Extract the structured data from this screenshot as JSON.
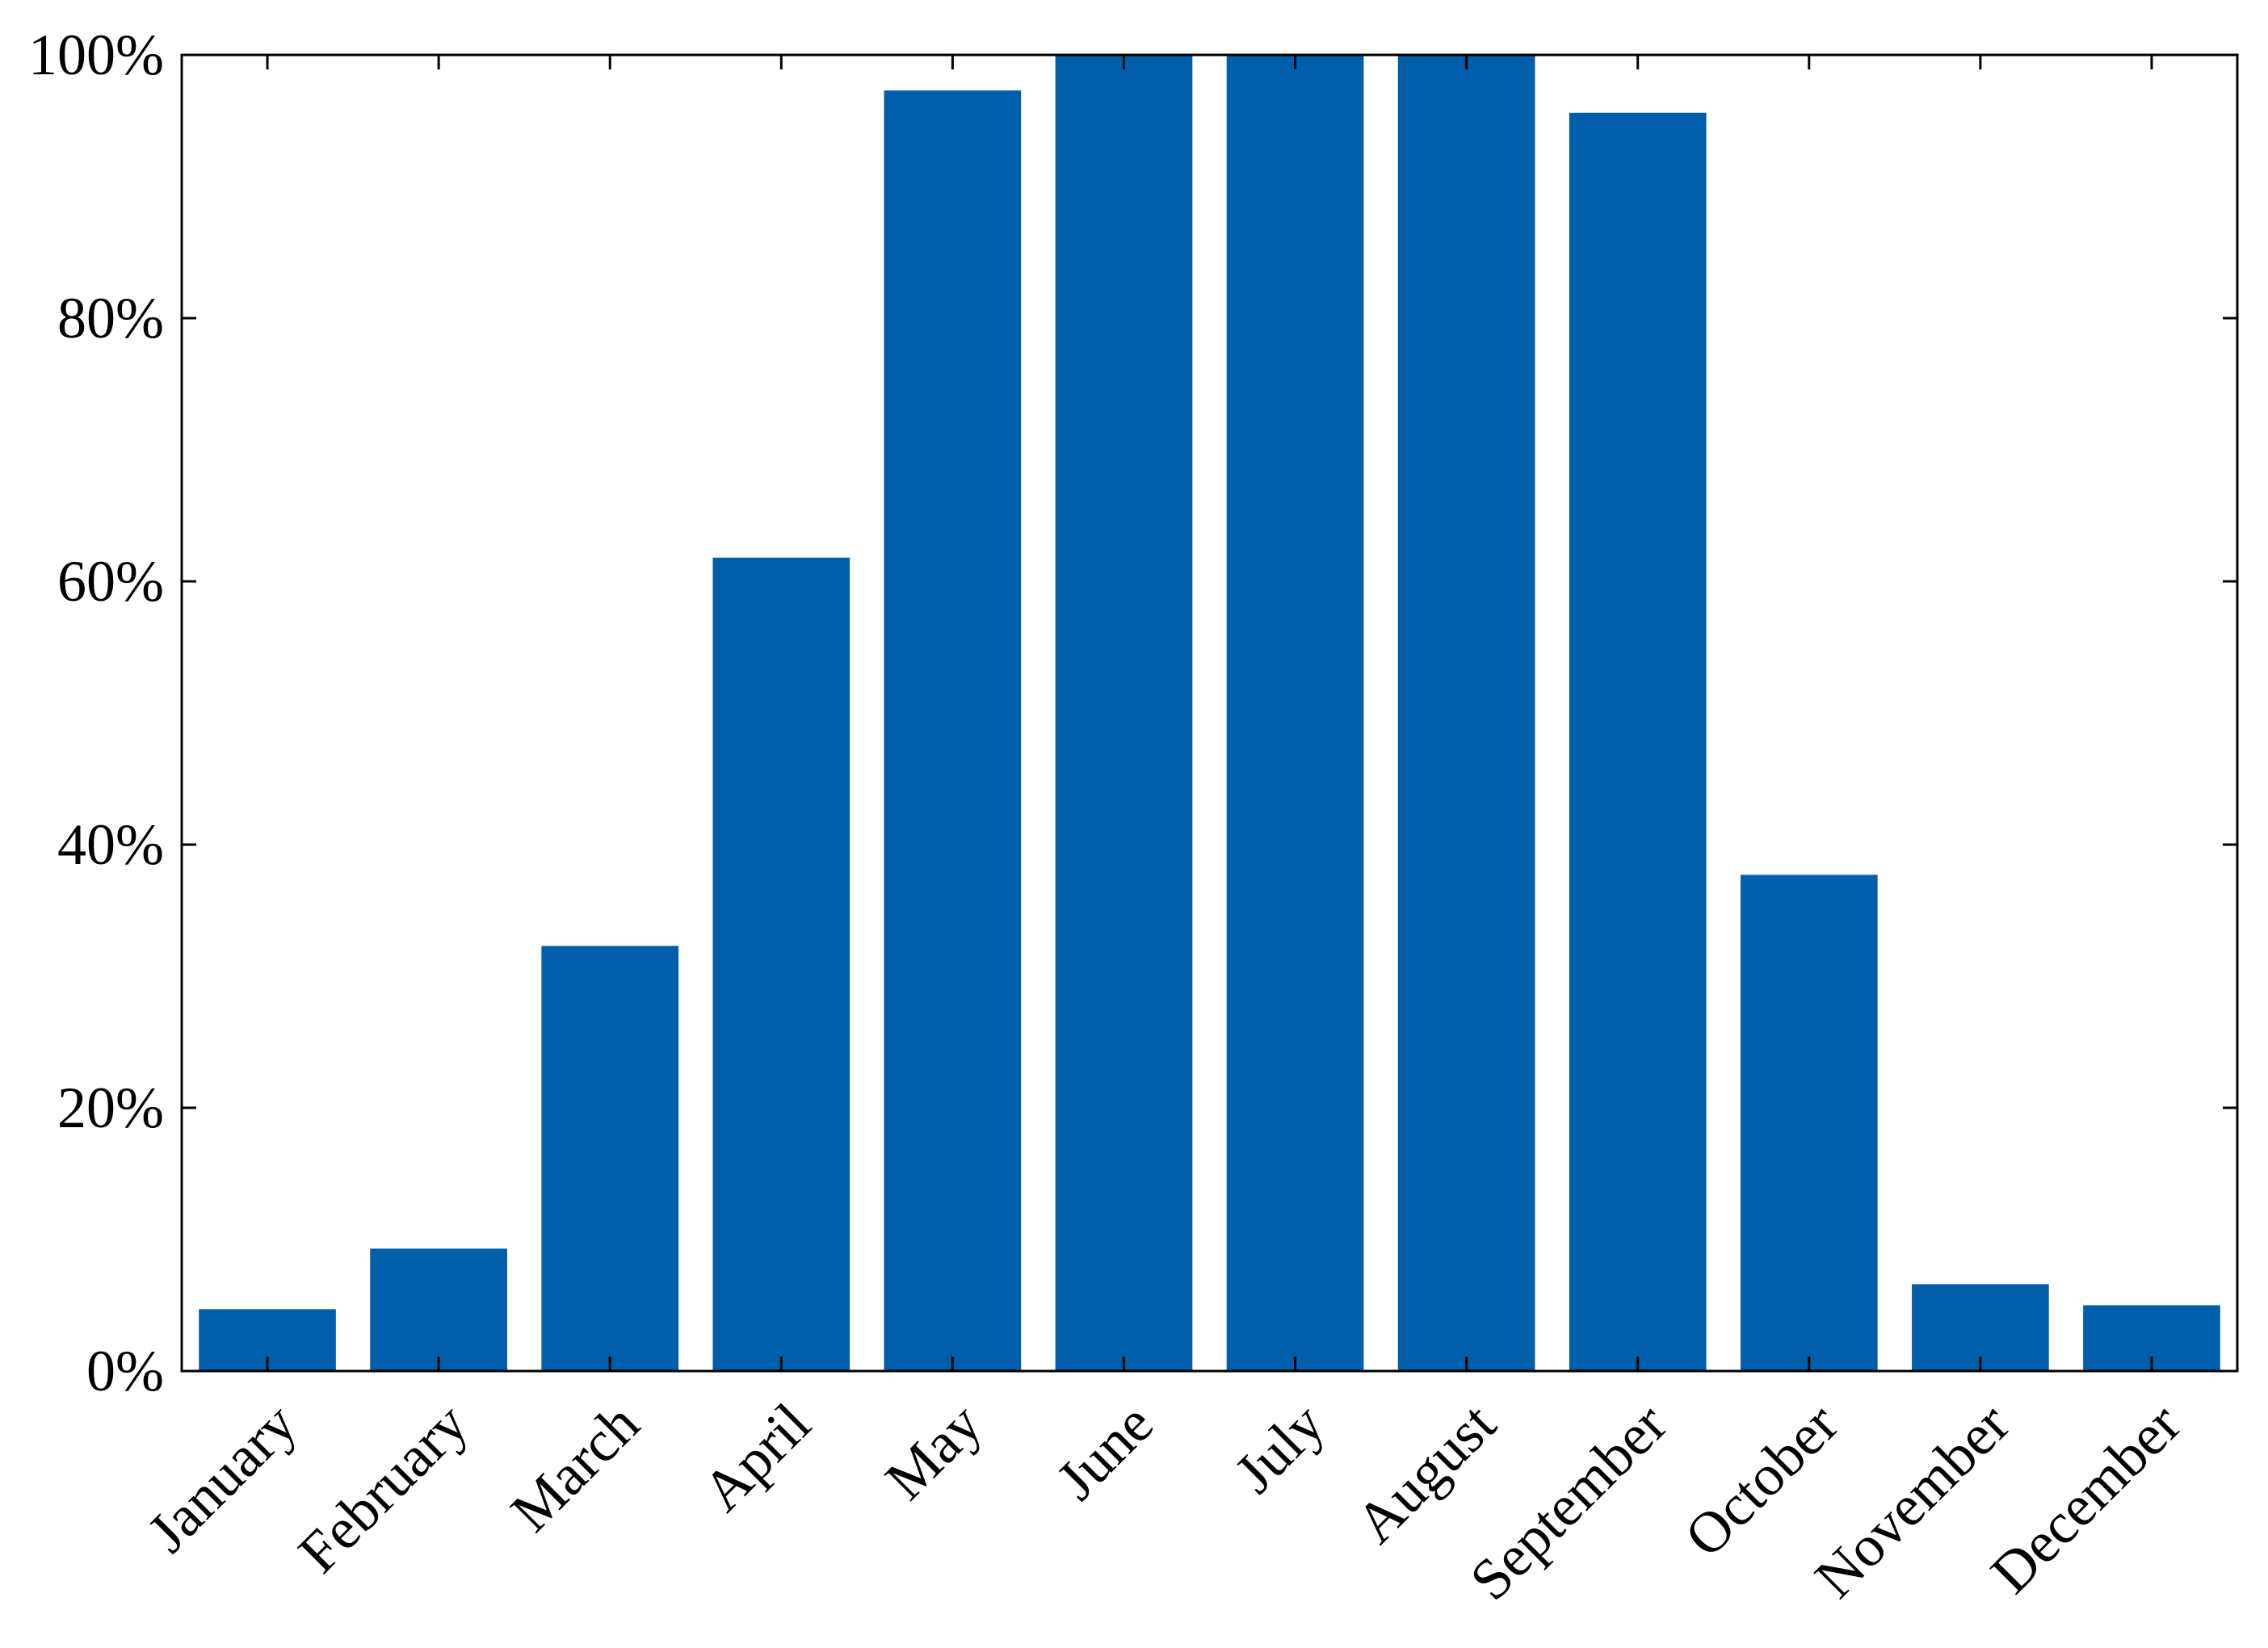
{
  "chart_data": {
    "type": "bar",
    "title": "",
    "xlabel": "",
    "ylabel": "",
    "categories": [
      "January",
      "February",
      "March",
      "April",
      "May",
      "June",
      "July",
      "August",
      "September",
      "October",
      "November",
      "December"
    ],
    "values": [
      4.7,
      9.3,
      32.3,
      61.8,
      97.3,
      100,
      100,
      100,
      95.6,
      37.7,
      6.6,
      5.0
    ],
    "value_unit": "%",
    "ylim": [
      0,
      100
    ],
    "yticks": [
      0,
      20,
      40,
      60,
      80,
      100
    ],
    "ytick_labels": [
      "0%",
      "20%",
      "40%",
      "60%",
      "80%",
      "100%"
    ],
    "bar_color": "#005EAA",
    "grid": false,
    "legend": "none"
  }
}
